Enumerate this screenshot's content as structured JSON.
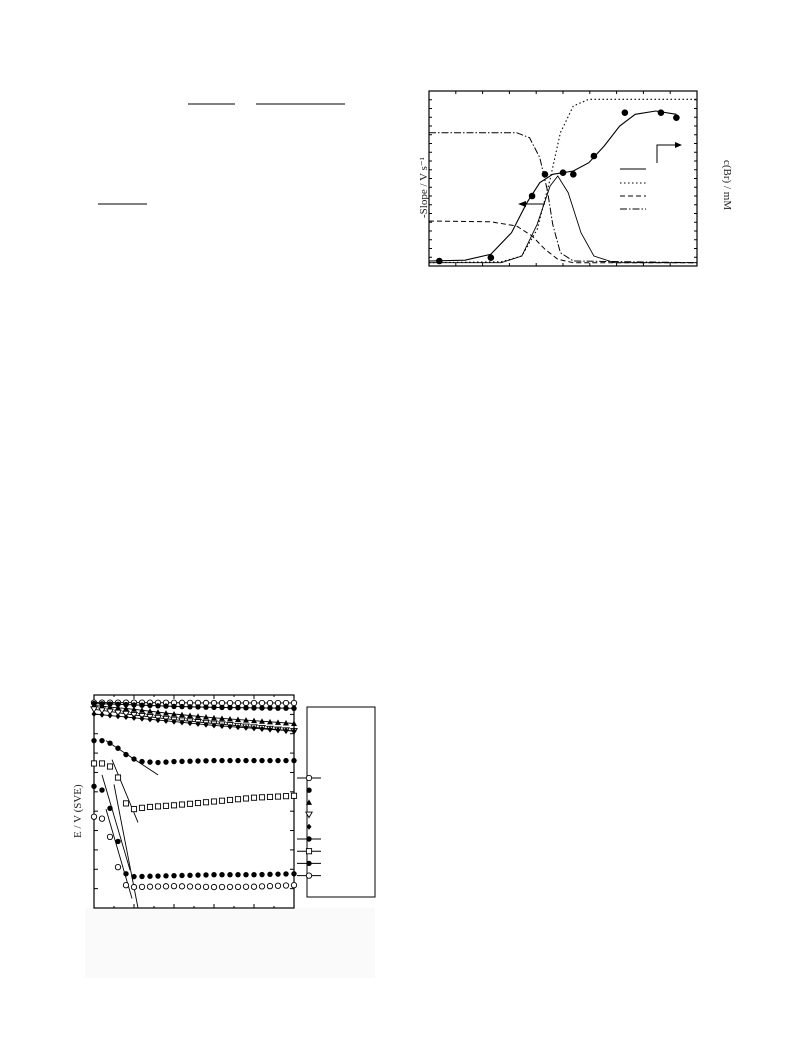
{
  "page": {},
  "chart_data": [
    {
      "type": "line",
      "ylabel": "-Slope / V s⁻¹",
      "y2label": "c(Br) / mM",
      "markers": {
        "points": [
          [
            0.0,
            0.03
          ],
          [
            1.0,
            0.05
          ],
          [
            1.8,
            0.42
          ],
          [
            2.05,
            0.55
          ],
          [
            2.4,
            0.56
          ],
          [
            2.6,
            0.55
          ],
          [
            3.0,
            0.66
          ],
          [
            3.6,
            0.92
          ],
          [
            4.3,
            0.92
          ],
          [
            4.6,
            0.89
          ]
        ]
      },
      "series": [
        {
          "curve": [
            [
              -0.2,
              0.03
            ],
            [
              0.5,
              0.035
            ],
            [
              1.0,
              0.07
            ],
            [
              1.4,
              0.2
            ],
            [
              1.7,
              0.38
            ],
            [
              1.95,
              0.5
            ],
            [
              2.2,
              0.55
            ],
            [
              2.6,
              0.57
            ],
            [
              2.9,
              0.62
            ],
            [
              3.2,
              0.72
            ],
            [
              3.5,
              0.84
            ],
            [
              3.8,
              0.91
            ],
            [
              4.2,
              0.93
            ],
            [
              4.6,
              0.91
            ]
          ]
        },
        {
          "curve": [
            [
              -0.2,
              0.02
            ],
            [
              1.2,
              0.02
            ],
            [
              1.6,
              0.06
            ],
            [
              1.9,
              0.25
            ],
            [
              2.15,
              0.48
            ],
            [
              2.3,
              0.54
            ],
            [
              2.5,
              0.44
            ],
            [
              2.75,
              0.2
            ],
            [
              3.0,
              0.06
            ],
            [
              3.4,
              0.02
            ],
            [
              5.0,
              0.02
            ]
          ]
        },
        {
          "curve": [
            [
              -0.2,
              0.02
            ],
            [
              1.2,
              0.025
            ],
            [
              1.6,
              0.06
            ],
            [
              1.9,
              0.22
            ],
            [
              2.15,
              0.52
            ],
            [
              2.35,
              0.8
            ],
            [
              2.6,
              0.96
            ],
            [
              2.9,
              1.0
            ],
            [
              5.0,
              1.0
            ]
          ]
        },
        {
          "curve": [
            [
              -0.2,
              0.27
            ],
            [
              1.0,
              0.265
            ],
            [
              1.5,
              0.24
            ],
            [
              1.8,
              0.18
            ],
            [
              2.05,
              0.1
            ],
            [
              2.3,
              0.04
            ],
            [
              2.6,
              0.02
            ],
            [
              5.0,
              0.02
            ]
          ]
        },
        {
          "curve": [
            [
              -0.2,
              0.8
            ],
            [
              1.5,
              0.8
            ],
            [
              1.75,
              0.77
            ],
            [
              1.95,
              0.65
            ],
            [
              2.1,
              0.45
            ],
            [
              2.2,
              0.25
            ],
            [
              2.35,
              0.08
            ],
            [
              2.6,
              0.03
            ],
            [
              5.0,
              0.02
            ]
          ]
        }
      ],
      "xlim": [
        -0.2,
        5.0
      ],
      "ylim": [
        0,
        1.05
      ]
    },
    {
      "type": "scatter",
      "ylabel": "E / V (SVE)",
      "series": [
        {
          "marker": "open-circle",
          "values": [
            [
              0.0,
              0.98
            ],
            [
              0.5,
              0.98
            ],
            [
              1.0,
              0.98
            ],
            [
              2.0,
              0.979
            ],
            [
              3.0,
              0.978
            ],
            [
              4.0,
              0.978
            ],
            [
              5.0,
              0.978
            ]
          ]
        },
        {
          "marker": "filled-circle",
          "values": [
            [
              0.0,
              0.975
            ],
            [
              0.5,
              0.972
            ],
            [
              1.0,
              0.968
            ],
            [
              2.0,
              0.96
            ],
            [
              3.0,
              0.955
            ],
            [
              4.0,
              0.952
            ],
            [
              5.0,
              0.95
            ]
          ]
        },
        {
          "marker": "triangle",
          "values": [
            [
              0.0,
              0.965
            ],
            [
              0.5,
              0.955
            ],
            [
              1.0,
              0.945
            ],
            [
              2.0,
              0.92
            ],
            [
              3.0,
              0.9
            ],
            [
              4.0,
              0.885
            ],
            [
              5.0,
              0.87
            ]
          ]
        },
        {
          "marker": "open-triangle-down",
          "values": [
            [
              0.0,
              0.945
            ],
            [
              0.5,
              0.93
            ],
            [
              1.0,
              0.915
            ],
            [
              2.0,
              0.89
            ],
            [
              3.0,
              0.87
            ],
            [
              4.0,
              0.85
            ],
            [
              5.0,
              0.83
            ]
          ]
        },
        {
          "marker": "diamond",
          "values": [
            [
              0.0,
              0.92
            ],
            [
              0.5,
              0.91
            ],
            [
              1.0,
              0.9
            ],
            [
              2.0,
              0.88
            ],
            [
              3.0,
              0.86
            ],
            [
              4.0,
              0.845
            ],
            [
              5.0,
              0.83
            ]
          ]
        },
        {
          "marker": "filled-circle",
          "values": [
            [
              0.0,
              0.78
            ],
            [
              0.3,
              0.78
            ],
            [
              0.6,
              0.74
            ],
            [
              0.9,
              0.69
            ],
            [
              1.2,
              0.67
            ],
            [
              1.6,
              0.665
            ],
            [
              2.0,
              0.67
            ],
            [
              3.0,
              0.675
            ],
            [
              4.0,
              0.675
            ],
            [
              5.0,
              0.675
            ]
          ]
        },
        {
          "marker": "open-square",
          "values": [
            [
              0.0,
              0.66
            ],
            [
              0.3,
              0.66
            ],
            [
              0.55,
              0.62
            ],
            [
              0.8,
              0.45
            ],
            [
              1.0,
              0.42
            ],
            [
              1.3,
              0.43
            ],
            [
              2.0,
              0.44
            ],
            [
              3.0,
              0.46
            ],
            [
              4.0,
              0.48
            ],
            [
              5.0,
              0.49
            ]
          ]
        },
        {
          "marker": "filled-circle",
          "values": [
            [
              0.0,
              0.54
            ],
            [
              0.2,
              0.52
            ],
            [
              0.45,
              0.4
            ],
            [
              0.65,
              0.2
            ],
            [
              0.8,
              0.08
            ],
            [
              1.0,
              0.065
            ],
            [
              2.0,
              0.07
            ],
            [
              3.0,
              0.075
            ],
            [
              4.0,
              0.075
            ],
            [
              5.0,
              0.08
            ]
          ]
        },
        {
          "marker": "open-circle",
          "values": [
            [
              0.0,
              0.38
            ],
            [
              0.2,
              0.37
            ],
            [
              0.45,
              0.25
            ],
            [
              0.65,
              0.07
            ],
            [
              0.8,
              0.02
            ],
            [
              1.0,
              0.01
            ],
            [
              2.0,
              0.015
            ],
            [
              3.0,
              0.01
            ],
            [
              4.0,
              0.012
            ],
            [
              5.0,
              0.02
            ]
          ]
        }
      ],
      "xlim": [
        0,
        5.0
      ],
      "ylim": [
        -0.1,
        1.02
      ]
    }
  ]
}
